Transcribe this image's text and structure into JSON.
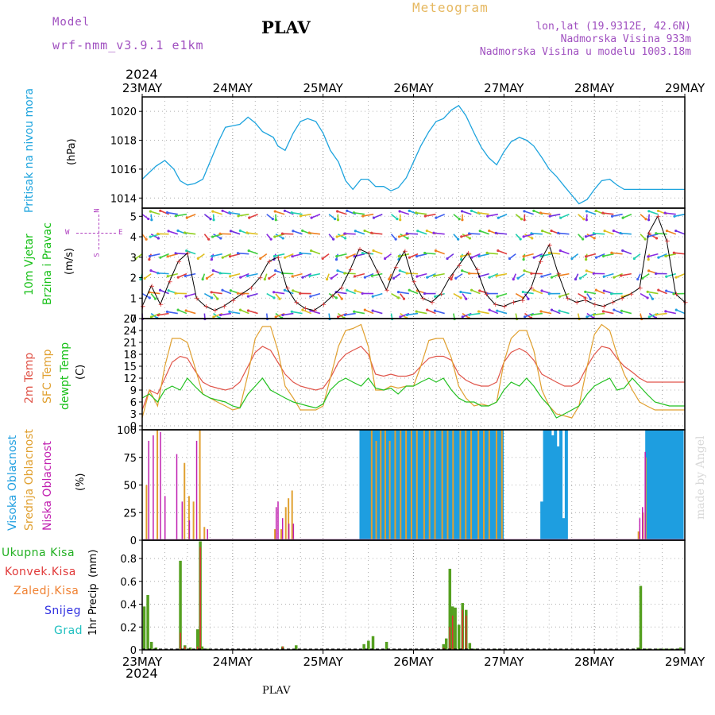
{
  "header": {
    "model_label": "Model",
    "model_name": "wrf-nmm_v3.9.1 e1km",
    "station": "PLAV",
    "product": "Meteogram",
    "lonlat": "lon,lat (19.9312E, 42.6N)",
    "elevation": "Nadmorska Visina 933m",
    "model_elevation": "Nadmorska Visina u modelu 1003.18m",
    "year_top": "2024",
    "year_bottom": "2024",
    "footer_station": "PLAV",
    "credit": "made by Angel"
  },
  "colors": {
    "pressure": "#1ea4de",
    "gust": "#000000",
    "temp2m": "#e0554a",
    "sfc": "#e0a030",
    "dewpt": "#22c020",
    "high_cloud": "#1e9ee0",
    "mid_cloud": "#e0a030",
    "low_cloud": "#c020b0",
    "rain_total": "#55a020",
    "rain_conv": "#e03030",
    "zaledj": "#f08030",
    "snow": "#3030e0",
    "grad": "#20c0c0",
    "ylabel_pressure": "#1ea4de",
    "ylabel_wind": "#18c018",
    "ylabel_temp2m": "#e0554a",
    "ylabel_sfc": "#e0a030",
    "ylabel_dewpt": "#18c018"
  },
  "chart_data": [
    {
      "type": "line",
      "panel": "pressure",
      "ylabel": "Pritisak na nivou mora",
      "unit": "(hPa)",
      "ylim": [
        1013.3,
        1021
      ],
      "yticks": [
        1014,
        1016,
        1018,
        1020
      ],
      "x_day": [
        0,
        0.15,
        0.25,
        0.35,
        0.42,
        0.5,
        0.58,
        0.67,
        0.75,
        0.85,
        0.92,
        1.0,
        1.08,
        1.17,
        1.25,
        1.33,
        1.45,
        1.5,
        1.58,
        1.67,
        1.75,
        1.83,
        1.92,
        2.0,
        2.08,
        2.17,
        2.25,
        2.33,
        2.42,
        2.5,
        2.58,
        2.67,
        2.75,
        2.83,
        2.92,
        3.0,
        3.08,
        3.17,
        3.25,
        3.33,
        3.42,
        3.5,
        3.58,
        3.67,
        3.75,
        3.83,
        3.92,
        4.0,
        4.08,
        4.17,
        4.25,
        4.33,
        4.42,
        4.5,
        4.58,
        4.67,
        4.75,
        4.83,
        4.92,
        5.0,
        5.08,
        5.17,
        5.25,
        5.33,
        5.42,
        5.5,
        5.58,
        5.67,
        5.75,
        5.83,
        5.92,
        6.0
      ],
      "values": [
        1015.3,
        1016.2,
        1016.6,
        1016.0,
        1015.2,
        1014.9,
        1015.0,
        1015.3,
        1016.5,
        1018.0,
        1018.9,
        1019.0,
        1019.1,
        1019.6,
        1019.2,
        1018.6,
        1018.2,
        1017.6,
        1017.3,
        1018.5,
        1019.3,
        1019.5,
        1019.3,
        1018.5,
        1017.3,
        1016.5,
        1015.2,
        1014.6,
        1015.3,
        1015.3,
        1014.8,
        1014.8,
        1014.5,
        1014.7,
        1015.4,
        1016.5,
        1017.6,
        1018.6,
        1019.3,
        1019.5,
        1020.1,
        1020.4,
        1019.7,
        1018.5,
        1017.5,
        1016.8,
        1016.3,
        1017.2,
        1017.9,
        1018.2,
        1018.0,
        1017.6,
        1016.8,
        1016.0,
        1015.5,
        1014.8,
        1014.2,
        1013.6,
        1013.9,
        1014.6,
        1015.2,
        1015.3,
        1014.9,
        1014.6,
        1014.6,
        1014.6,
        1014.6,
        1014.6,
        1014.6,
        1014.6,
        1014.6,
        1014.6
      ]
    },
    {
      "type": "line",
      "panel": "wind",
      "ylabel": "10m Vjetar Brzina i Pravac",
      "ylabel_line1": "10m Vjetar",
      "ylabel_line2": "Brzina i Pravac",
      "unit": "(m/s)",
      "compass": {
        "n": "N",
        "w": "W",
        "e": "E",
        "s": "S"
      },
      "ylim": [
        0,
        5.4
      ],
      "yticks": [
        0,
        1,
        2,
        3,
        4,
        5
      ],
      "x_day": [
        0,
        0.1,
        0.2,
        0.3,
        0.4,
        0.5,
        0.6,
        0.7,
        0.8,
        0.9,
        1.0,
        1.1,
        1.2,
        1.3,
        1.4,
        1.5,
        1.6,
        1.7,
        1.8,
        1.9,
        2.0,
        2.1,
        2.2,
        2.3,
        2.4,
        2.5,
        2.6,
        2.7,
        2.8,
        2.9,
        3.0,
        3.1,
        3.2,
        3.3,
        3.4,
        3.5,
        3.6,
        3.7,
        3.8,
        3.9,
        4.0,
        4.1,
        4.2,
        4.3,
        4.4,
        4.5,
        4.6,
        4.7,
        4.8,
        4.9,
        5.0,
        5.1,
        5.2,
        5.3,
        5.4,
        5.5,
        5.6,
        5.7,
        5.8,
        5.9,
        6.0
      ],
      "values": [
        0.6,
        1.6,
        0.7,
        1.8,
        2.8,
        3.2,
        1.0,
        0.6,
        0.4,
        0.6,
        0.9,
        1.2,
        1.5,
        2.0,
        2.8,
        3.0,
        1.5,
        0.8,
        0.5,
        0.4,
        0.7,
        1.1,
        1.5,
        2.4,
        3.4,
        3.2,
        2.3,
        1.4,
        2.5,
        3.3,
        1.8,
        1.0,
        0.8,
        1.2,
        2.0,
        2.6,
        3.2,
        2.4,
        1.2,
        0.7,
        0.6,
        0.8,
        0.9,
        1.5,
        2.8,
        3.6,
        2.2,
        1.0,
        0.8,
        0.9,
        0.7,
        0.6,
        0.8,
        1.0,
        1.2,
        1.5,
        4.2,
        5.0,
        3.8,
        1.2,
        0.8
      ]
    },
    {
      "type": "line",
      "panel": "temperature",
      "ylabel": "2m Temp / SFC Temp / dewpt Temp",
      "ylabel_temp2m": "2m Temp",
      "ylabel_sfc": "SFC Temp",
      "ylabel_dewpt": "dewpt Temp",
      "unit": "(C)",
      "ylim": [
        -1,
        27
      ],
      "yticks": [
        0,
        3,
        6,
        9,
        12,
        15,
        18,
        21,
        24,
        27
      ],
      "x_day": [
        0,
        0.08,
        0.17,
        0.25,
        0.33,
        0.42,
        0.5,
        0.58,
        0.67,
        0.75,
        0.83,
        0.92,
        1.0,
        1.08,
        1.17,
        1.25,
        1.33,
        1.42,
        1.5,
        1.58,
        1.67,
        1.75,
        1.83,
        1.92,
        2.0,
        2.08,
        2.17,
        2.25,
        2.33,
        2.42,
        2.5,
        2.58,
        2.67,
        2.75,
        2.83,
        2.92,
        3.0,
        3.08,
        3.17,
        3.25,
        3.33,
        3.42,
        3.5,
        3.58,
        3.67,
        3.75,
        3.83,
        3.92,
        4.0,
        4.08,
        4.17,
        4.25,
        4.33,
        4.42,
        4.5,
        4.58,
        4.67,
        4.75,
        4.83,
        4.92,
        5.0,
        5.08,
        5.17,
        5.25,
        5.33,
        5.42,
        5.5,
        5.58,
        5.67,
        5.75,
        5.83,
        5.92,
        6.0
      ],
      "series": [
        {
          "name": "2m Temp",
          "values": [
            4,
            9,
            8,
            12,
            16,
            17.5,
            17,
            14,
            11,
            10,
            9.5,
            9,
            9.5,
            11,
            15,
            18.5,
            20,
            19,
            16,
            13,
            11,
            10,
            9.5,
            9,
            9.5,
            12,
            16,
            18,
            19,
            20,
            18,
            13,
            12.5,
            13,
            12.5,
            12.5,
            13,
            15,
            17,
            17.5,
            17.5,
            16.5,
            13,
            11.5,
            10.5,
            10,
            10,
            11,
            16,
            18.5,
            19.5,
            18.5,
            16.5,
            13,
            12,
            11,
            10,
            10,
            11,
            15,
            18,
            20,
            19.5,
            17,
            15,
            13.5,
            12,
            11,
            11,
            11,
            11,
            11,
            11
          ]
        },
        {
          "name": "SFC Temp",
          "values": [
            2,
            9,
            5,
            15,
            22,
            22,
            21,
            15,
            8,
            7,
            6,
            5,
            4,
            4.5,
            13,
            22,
            25,
            25,
            19,
            10,
            7,
            4,
            4,
            4,
            5,
            12,
            20,
            24,
            24.5,
            25.5,
            20,
            9,
            9,
            10,
            9.5,
            10,
            10,
            15,
            21.5,
            22,
            22,
            17,
            10,
            7,
            5,
            5.5,
            5,
            6,
            16,
            22,
            24,
            24,
            19,
            9,
            5,
            3,
            2.5,
            2,
            5,
            15,
            23,
            25.5,
            24,
            18,
            13,
            9,
            6,
            5,
            4,
            4,
            4,
            4,
            4
          ]
        },
        {
          "name": "dewpt Temp",
          "values": [
            7,
            8,
            6,
            9,
            10,
            9,
            12,
            10,
            8,
            7,
            6.5,
            6,
            5,
            4.5,
            8,
            10,
            12,
            9,
            8,
            7,
            6,
            5.5,
            5,
            4.5,
            5.5,
            9,
            11,
            12,
            11,
            10,
            12,
            9.5,
            9,
            9.5,
            8,
            10,
            10,
            11,
            12,
            11,
            12,
            9,
            7,
            6,
            6,
            5,
            5,
            6,
            9,
            11,
            10,
            12,
            10,
            7,
            5,
            2,
            3,
            4,
            5,
            8,
            10,
            11,
            12,
            9,
            9.5,
            12,
            10,
            8,
            6,
            5.5,
            5,
            5,
            5
          ]
        }
      ]
    },
    {
      "type": "bar",
      "panel": "cloud",
      "ylabel": "Visoka Oblacnost / Srednja Oblacnost / Niska Oblacnost",
      "ylabel_high": "Visoka Oblacnost",
      "ylabel_mid": "Srednja Oblacnost",
      "ylabel_low": "Niska Oblacnost",
      "unit": "(%)",
      "ylim": [
        0,
        100
      ],
      "yticks": [
        0,
        25,
        50,
        75,
        100
      ],
      "high": {
        "x_day": [
          2.42,
          2.45,
          2.48,
          2.51,
          2.54,
          2.57,
          2.6,
          2.63,
          2.66,
          2.69,
          2.72,
          2.75,
          2.78,
          2.81,
          2.84,
          2.87,
          2.9,
          2.93,
          2.96,
          2.99,
          3.02,
          3.05,
          3.08,
          3.11,
          3.14,
          3.17,
          3.2,
          3.23,
          3.26,
          3.29,
          3.32,
          3.35,
          3.38,
          3.41,
          3.44,
          3.47,
          3.5,
          3.53,
          3.56,
          3.59,
          3.62,
          3.65,
          3.68,
          3.71,
          3.74,
          3.77,
          3.8,
          3.83,
          3.86,
          3.89,
          3.92,
          3.95,
          3.98,
          4.42,
          4.45,
          4.48,
          4.51,
          4.54,
          4.57,
          4.6,
          4.63,
          4.66,
          4.69,
          5.58,
          5.61,
          5.64,
          5.67,
          5.7,
          5.73,
          5.76,
          5.79,
          5.82,
          5.85,
          5.88,
          5.91,
          5.94,
          5.97
        ],
        "values": [
          100,
          100,
          100,
          100,
          100,
          100,
          100,
          100,
          100,
          100,
          100,
          100,
          100,
          100,
          100,
          100,
          100,
          100,
          100,
          100,
          100,
          100,
          100,
          100,
          100,
          100,
          100,
          100,
          100,
          100,
          100,
          100,
          100,
          100,
          100,
          100,
          100,
          100,
          100,
          100,
          100,
          100,
          100,
          100,
          100,
          100,
          100,
          100,
          100,
          100,
          100,
          100,
          100,
          35,
          100,
          100,
          100,
          95,
          100,
          85,
          100,
          20,
          100,
          100,
          100,
          100,
          100,
          100,
          100,
          100,
          100,
          100,
          100,
          100,
          100,
          100,
          100
        ]
      },
      "mid": {
        "x_day": [
          0.03,
          0.15,
          0.45,
          0.5,
          0.55,
          0.62,
          0.67,
          1.45,
          1.52,
          1.57,
          1.6,
          1.64,
          2.52,
          2.57,
          2.62,
          2.67,
          2.72,
          2.78,
          2.84,
          2.9,
          2.96,
          3.02,
          3.1,
          3.16,
          3.22,
          3.3,
          3.36,
          3.42,
          3.5,
          3.56,
          3.62,
          3.7,
          3.76,
          3.82,
          3.9,
          3.96,
          5.47,
          5.52,
          5.55
        ],
        "values": [
          50,
          100,
          70,
          40,
          35,
          100,
          12,
          10,
          10,
          30,
          38,
          45,
          100,
          90,
          100,
          100,
          90,
          100,
          100,
          100,
          100,
          100,
          100,
          100,
          100,
          100,
          100,
          100,
          100,
          100,
          100,
          100,
          100,
          100,
          100,
          100,
          8,
          25,
          75
        ]
      },
      "low": {
        "x_day": [
          0.07,
          0.12,
          0.2,
          0.25,
          0.38,
          0.44,
          0.52,
          0.6,
          0.72,
          1.48,
          1.5,
          1.55,
          1.62,
          1.67,
          5.5,
          5.53,
          5.56
        ],
        "values": [
          90,
          95,
          98,
          40,
          78,
          35,
          18,
          90,
          10,
          30,
          35,
          20,
          15,
          15,
          20,
          30,
          80
        ]
      }
    },
    {
      "type": "bar",
      "panel": "precipitation",
      "ylabel": "1hr Precip",
      "unit": "(mm)",
      "legend": [
        "Ukupna Kisa",
        "Konvek.Kisa",
        "Zaledj.Kisa",
        "Snijeg",
        "Grad"
      ],
      "ylim": [
        0,
        0.96
      ],
      "yticks": [
        0,
        0.2,
        0.4,
        0.6,
        0.8
      ],
      "ytick_labels": [
        "0",
        "0.2",
        "0.4",
        "0.6",
        "0.8"
      ],
      "total": {
        "x_day": [
          0.02,
          0.06,
          0.1,
          0.15,
          0.42,
          0.47,
          0.53,
          0.61,
          0.64,
          0.66,
          0.72,
          1.55,
          1.7,
          2.45,
          2.5,
          2.55,
          2.7,
          3.33,
          3.36,
          3.4,
          3.43,
          3.46,
          3.5,
          3.54,
          3.58,
          3.62,
          3.67,
          3.9,
          5.48,
          5.51,
          5.58,
          5.62,
          5.7,
          5.72,
          5.75,
          5.78,
          5.8,
          5.83,
          5.9,
          5.95
        ],
        "values": [
          0.38,
          0.48,
          0.07,
          0.02,
          0.78,
          0.04,
          0.02,
          0.18,
          0.95,
          0.03,
          0.01,
          0.03,
          0.04,
          0.05,
          0.08,
          0.12,
          0.07,
          0.05,
          0.1,
          0.71,
          0.38,
          0.37,
          0.22,
          0.41,
          0.35,
          0.06,
          0.01,
          0.01,
          0.02,
          0.56,
          0.01,
          0.01,
          0.01,
          0.01,
          0.01,
          0.01,
          0.01,
          0.01,
          0.01,
          0.02
        ]
      },
      "conv": {
        "x_day": [
          0.42,
          0.47,
          0.61,
          0.64,
          1.55,
          3.33,
          3.4,
          3.43,
          3.54,
          3.58
        ],
        "values": [
          0.15,
          0.03,
          0.03,
          0.9,
          0.03,
          0.02,
          0.2,
          0.3,
          0.35,
          0.3
        ]
      }
    }
  ],
  "x_axis": {
    "dates": [
      "23MAY",
      "24MAY",
      "25MAY",
      "26MAY",
      "27MAY",
      "28MAY",
      "29MAY"
    ]
  }
}
